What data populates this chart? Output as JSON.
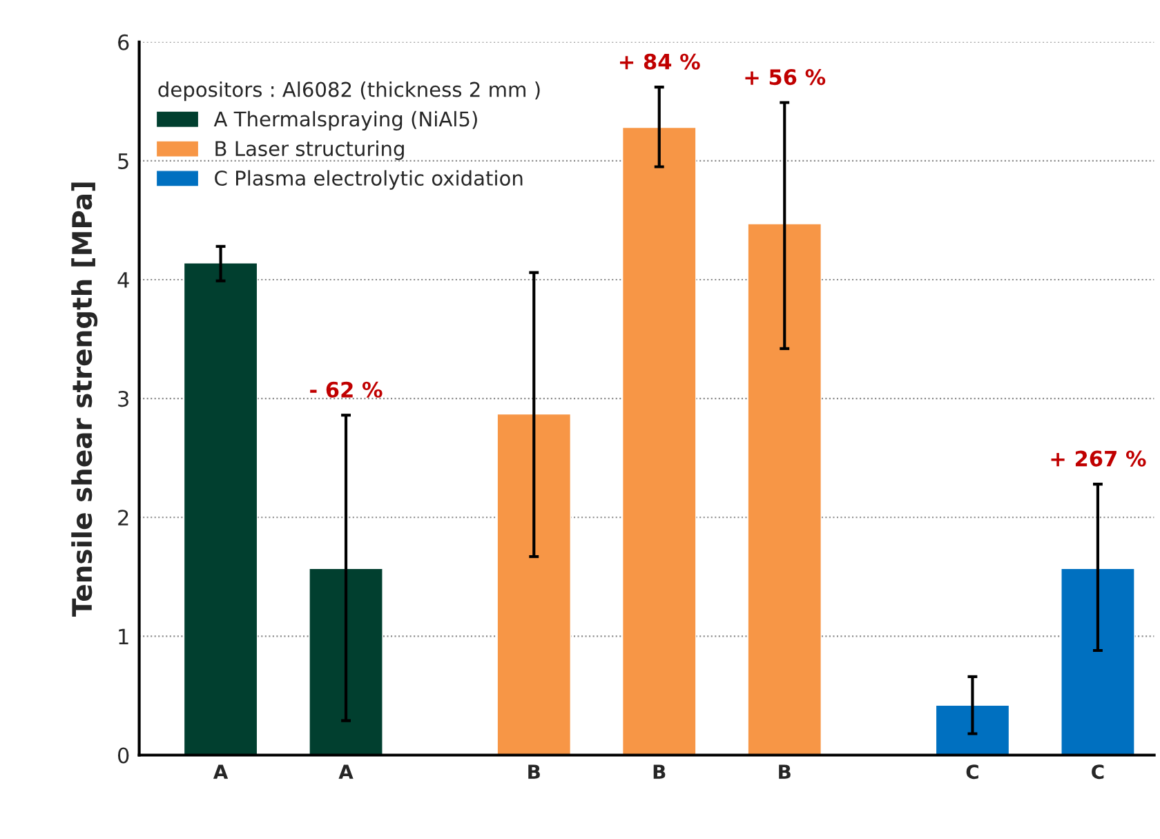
{
  "chart_data": {
    "type": "bar",
    "ylabel": "Tensile shear strength [MPa]",
    "legend_title": "depositors : Al6082 (thickness 2 mm )",
    "categories": [
      "A",
      null,
      "A",
      null,
      null,
      "B",
      null,
      "B",
      null,
      "B",
      null,
      null,
      "C",
      null,
      "C"
    ],
    "series": [
      {
        "name": "A Thermalspraying (NiAl5)",
        "color": "#013f2f",
        "values": [
          4.14,
          null,
          1.57,
          null,
          null,
          null,
          null,
          null,
          null,
          null,
          null,
          null,
          null,
          null,
          null
        ],
        "errors": [
          [
            3.99,
            4.28
          ],
          null,
          [
            0.29,
            2.86
          ],
          null,
          null,
          null,
          null,
          null,
          null,
          null,
          null,
          null,
          null,
          null,
          null
        ]
      },
      {
        "name": "B Laser structuring",
        "color": "#f79646",
        "values": [
          null,
          null,
          null,
          null,
          null,
          2.87,
          null,
          5.28,
          null,
          4.47,
          null,
          null,
          null,
          null,
          null
        ],
        "errors": [
          null,
          null,
          null,
          null,
          null,
          [
            1.67,
            4.06
          ],
          null,
          [
            4.95,
            5.62
          ],
          null,
          [
            3.42,
            5.49
          ],
          null,
          null,
          null,
          null,
          null
        ]
      },
      {
        "name": "C Plasma electrolytic oxidation",
        "color": "#0070c0",
        "values": [
          null,
          null,
          null,
          null,
          null,
          null,
          null,
          null,
          null,
          null,
          null,
          null,
          0.42,
          null,
          1.57
        ],
        "errors": [
          null,
          null,
          null,
          null,
          null,
          null,
          null,
          null,
          null,
          null,
          null,
          null,
          [
            0.18,
            0.66
          ],
          null,
          [
            0.88,
            2.28
          ]
        ]
      }
    ],
    "annotations": [
      "- 62 %",
      "+ 84 %",
      "+ 56 %",
      "+ 267 %"
    ],
    "ylim": [
      0,
      6
    ],
    "yticks": [
      0,
      1,
      2,
      3,
      4,
      5,
      6
    ],
    "grid": "y",
    "legend": "top left"
  }
}
